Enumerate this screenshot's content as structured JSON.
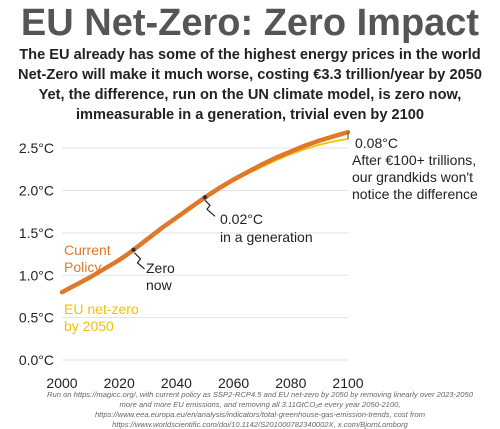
{
  "title": "EU Net-Zero: Zero Impact",
  "subtitle_lines": [
    "The EU already has some of the highest energy prices in the world",
    "Net-Zero will make it much worse, costing €3.3 trillion/year by 2050",
    "Yet, the difference, run on the UN climate model, is zero now,",
    "immeasurable in a generation, trivial even by 2100"
  ],
  "source": "Run on https://magicc.org/, with current policy as SSP2-RCP4.5 and EU net-zero by 2050 by removing linearly over 2023-2050 more and more EU emissions, and removing all 3.11GtCO₂e every year 2050-2100, https://www.eea.europa.eu/en/analysis/indicators/total-greenhouse-gas-emission-trends, cost from https://www.worldscientific.com/doi/10.1142/S201000782340002X, x.com/BjornLomborg",
  "colors": {
    "current_policy": "#e0782a",
    "net_zero": "#f2c200",
    "title": "#555555"
  },
  "chart_data": {
    "type": "line",
    "x": [
      2000,
      2005,
      2010,
      2015,
      2020,
      2023,
      2025,
      2030,
      2035,
      2040,
      2045,
      2050,
      2055,
      2060,
      2065,
      2070,
      2075,
      2080,
      2085,
      2090,
      2095,
      2100
    ],
    "series": [
      {
        "name": "Current Policy",
        "values": [
          0.8,
          0.89,
          0.98,
          1.08,
          1.18,
          1.25,
          1.3,
          1.43,
          1.56,
          1.68,
          1.8,
          1.92,
          2.03,
          2.13,
          2.22,
          2.31,
          2.39,
          2.46,
          2.53,
          2.59,
          2.64,
          2.69
        ]
      },
      {
        "name": "EU net-zero by 2050",
        "values": [
          0.8,
          0.89,
          0.98,
          1.08,
          1.18,
          1.25,
          1.3,
          1.43,
          1.56,
          1.68,
          1.79,
          1.9,
          2.01,
          2.11,
          2.2,
          2.28,
          2.36,
          2.43,
          2.49,
          2.54,
          2.58,
          2.61
        ]
      }
    ],
    "series_labels": [
      {
        "lines": [
          "Current",
          "Policy"
        ]
      },
      {
        "lines": [
          "EU net-zero",
          "by 2050"
        ]
      }
    ],
    "xlim": [
      2000,
      2100
    ],
    "ylim": [
      0,
      2.75
    ],
    "xticks": [
      "2000",
      "2020",
      "2040",
      "2060",
      "2080",
      "2100"
    ],
    "yticks": [
      "0.0°C",
      "0.5°C",
      "1.0°C",
      "1.5°C",
      "2.0°C",
      "2.5°C"
    ],
    "grid": "horizontal",
    "annotations": [
      {
        "x": 2025,
        "lines": [
          "Zero",
          "now"
        ]
      },
      {
        "x": 2050,
        "lines": [
          "0.02°C",
          "in a generation"
        ]
      },
      {
        "x": 2100,
        "lines": [
          "0.08°C",
          "After €100+ trillions,",
          "our grandkids won't",
          "notice the difference"
        ]
      }
    ]
  }
}
